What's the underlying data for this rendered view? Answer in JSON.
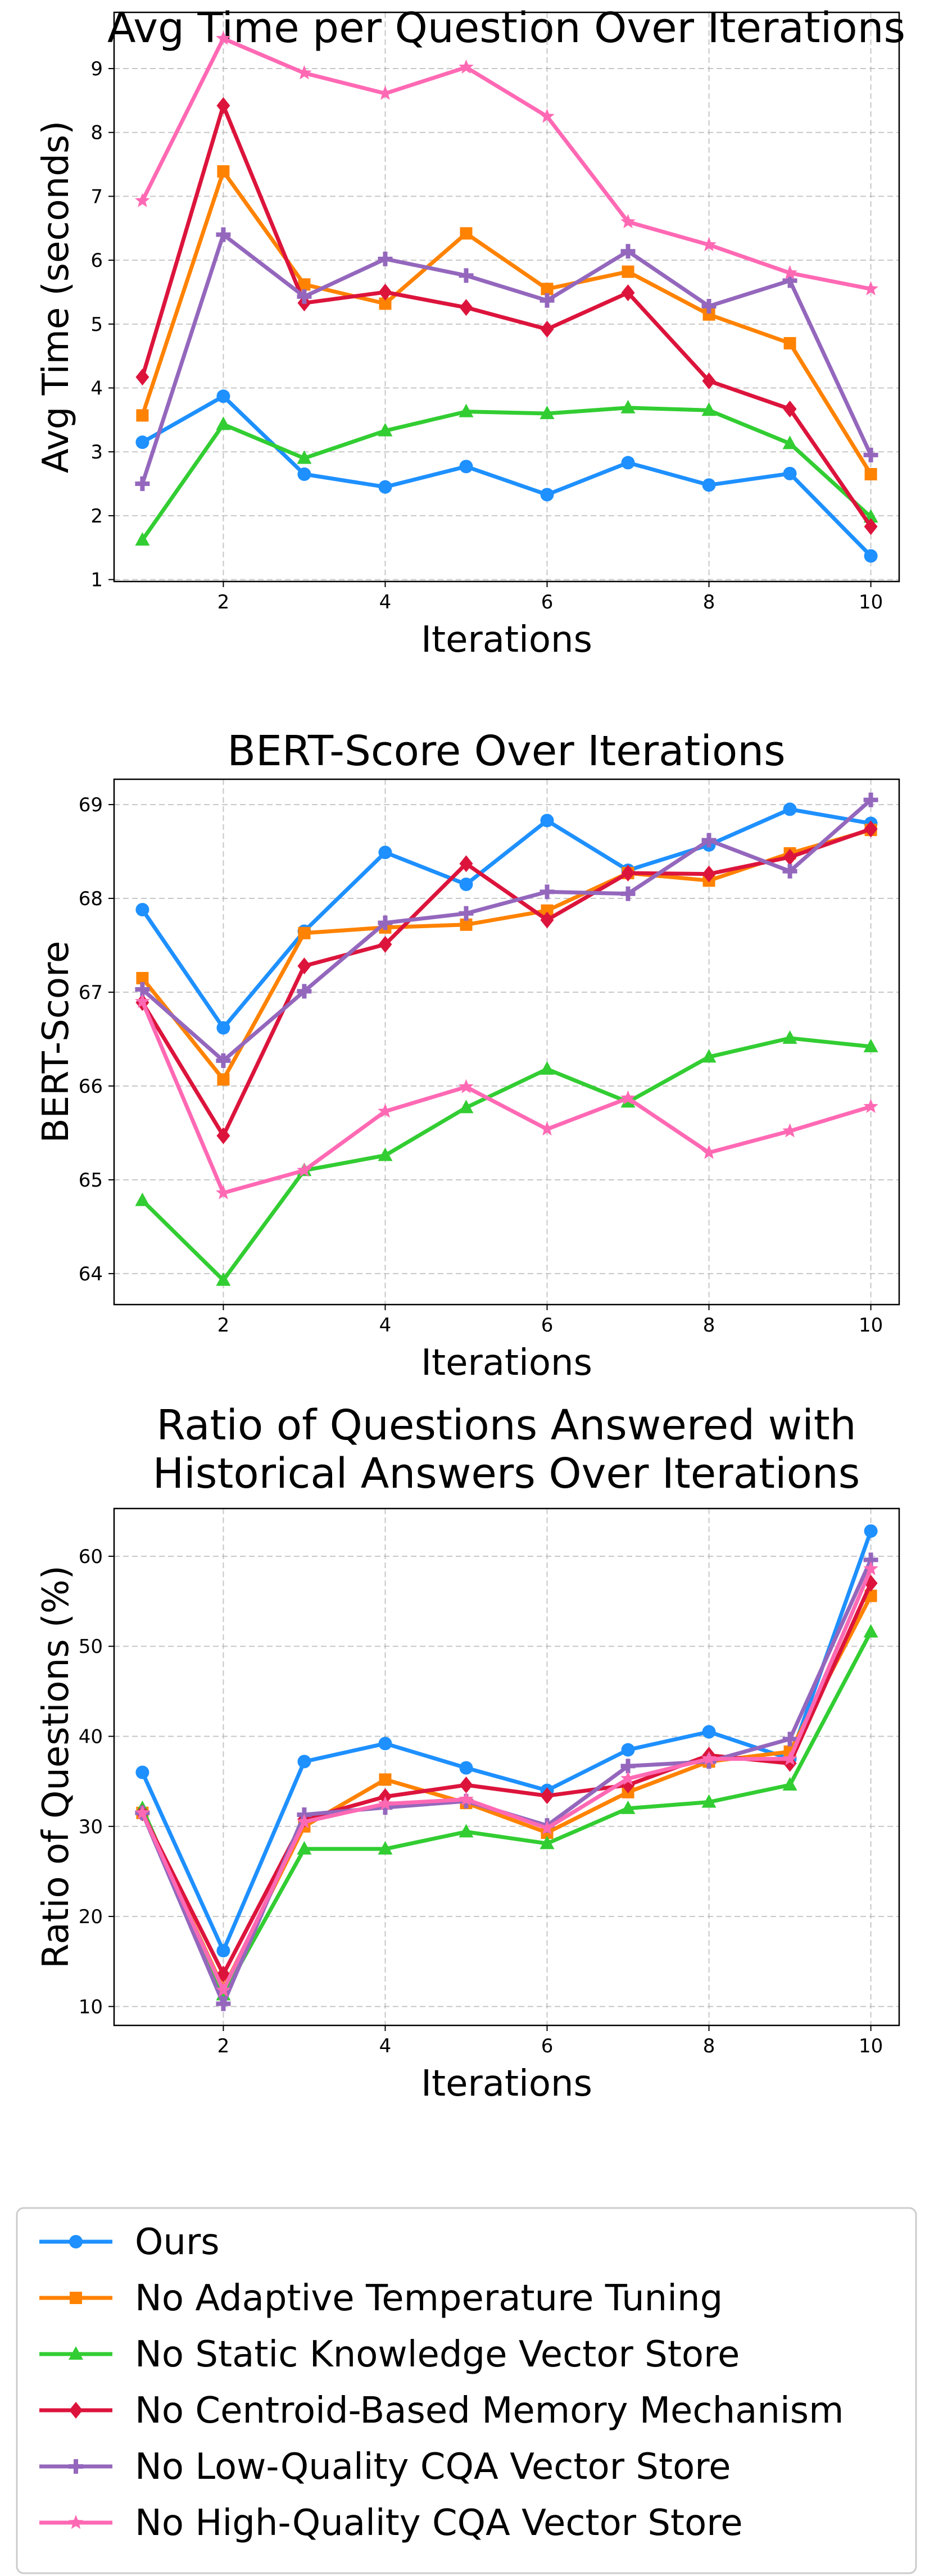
{
  "chart_data": [
    {
      "type": "line",
      "title": [
        "Avg Time per Question Over Iterations"
      ],
      "xlabel": "Iterations",
      "ylabel": "Avg Time (seconds)",
      "xlim": [
        0.65,
        10.35
      ],
      "ylim": [
        0.97,
        9.88
      ],
      "xticks": [
        2,
        4,
        6,
        8,
        10
      ],
      "yticks": [
        1,
        2,
        3,
        4,
        5,
        6,
        7,
        8,
        9
      ],
      "grid": true,
      "x": [
        1,
        2,
        3,
        4,
        5,
        6,
        7,
        8,
        9,
        10
      ],
      "series": [
        {
          "name": "Ours",
          "values": [
            3.15,
            3.87,
            2.65,
            2.45,
            2.77,
            2.33,
            2.83,
            2.48,
            2.66,
            1.37
          ]
        },
        {
          "name": "No Adaptive Temperature Tuning",
          "values": [
            3.57,
            7.39,
            5.62,
            5.32,
            6.42,
            5.55,
            5.82,
            5.15,
            4.7,
            2.65
          ]
        },
        {
          "name": "No Static Knowledge Vector Store",
          "values": [
            1.62,
            3.43,
            2.9,
            3.33,
            3.63,
            3.6,
            3.69,
            3.65,
            3.13,
            1.98
          ]
        },
        {
          "name": "No Centroid-Based Memory Mechanism",
          "values": [
            4.17,
            8.42,
            5.33,
            5.5,
            5.26,
            4.92,
            5.49,
            4.11,
            3.67,
            1.83
          ]
        },
        {
          "name": "No Low-Quality CQA Vector Store",
          "values": [
            2.5,
            6.4,
            5.43,
            6.02,
            5.76,
            5.37,
            6.14,
            5.28,
            5.68,
            2.95
          ]
        },
        {
          "name": "No High-Quality CQA Vector Store",
          "values": [
            6.93,
            9.47,
            8.93,
            8.61,
            9.02,
            8.25,
            6.6,
            6.24,
            5.8,
            5.55
          ]
        }
      ]
    },
    {
      "type": "line",
      "title": [
        "BERT-Score Over Iterations"
      ],
      "xlabel": "Iterations",
      "ylabel": "BERT-Score",
      "xlim": [
        0.65,
        10.35
      ],
      "ylim": [
        63.67,
        69.27
      ],
      "xticks": [
        2,
        4,
        6,
        8,
        10
      ],
      "yticks": [
        64,
        65,
        66,
        67,
        68,
        69
      ],
      "grid": true,
      "x": [
        1,
        2,
        3,
        4,
        5,
        6,
        7,
        8,
        9,
        10
      ],
      "series": [
        {
          "name": "Ours",
          "values": [
            67.88,
            66.62,
            67.65,
            68.49,
            68.15,
            68.83,
            68.3,
            68.57,
            68.95,
            68.8
          ]
        },
        {
          "name": "No Adaptive Temperature Tuning",
          "values": [
            67.15,
            66.07,
            67.63,
            67.69,
            67.72,
            67.87,
            68.27,
            68.19,
            68.48,
            68.73
          ]
        },
        {
          "name": "No Static Knowledge Vector Store",
          "values": [
            64.78,
            63.93,
            65.1,
            65.26,
            65.77,
            66.18,
            65.83,
            66.31,
            66.51,
            66.42
          ]
        },
        {
          "name": "No Centroid-Based Memory Mechanism",
          "values": [
            66.89,
            65.47,
            67.28,
            67.51,
            68.37,
            67.77,
            68.27,
            68.26,
            68.44,
            68.74
          ]
        },
        {
          "name": "No Low-Quality CQA Vector Store",
          "values": [
            67.03,
            66.27,
            67.01,
            67.74,
            67.84,
            68.07,
            68.05,
            68.62,
            68.29,
            69.05
          ]
        },
        {
          "name": "No High-Quality CQA Vector Store",
          "values": [
            66.9,
            64.86,
            65.1,
            65.73,
            65.99,
            65.54,
            65.87,
            65.29,
            65.52,
            65.78
          ]
        }
      ]
    },
    {
      "type": "line",
      "title": [
        "Ratio of Questions Answered with",
        "Historical Answers Over Iterations"
      ],
      "xlabel": "Iterations",
      "ylabel": "Ratio of Questions (%)",
      "xlim": [
        0.65,
        10.35
      ],
      "ylim": [
        7.9,
        65.3
      ],
      "xticks": [
        2,
        4,
        6,
        8,
        10
      ],
      "yticks": [
        10,
        20,
        30,
        40,
        50,
        60
      ],
      "grid": true,
      "x": [
        1,
        2,
        3,
        4,
        5,
        6,
        7,
        8,
        9,
        10
      ],
      "series": [
        {
          "name": "Ours",
          "values": [
            36.0,
            16.2,
            37.2,
            39.2,
            36.5,
            34.0,
            38.5,
            40.5,
            37.5,
            62.8
          ]
        },
        {
          "name": "No Adaptive Temperature Tuning",
          "values": [
            31.5,
            12.0,
            30.0,
            35.2,
            32.6,
            29.3,
            33.8,
            37.2,
            38.3,
            55.6
          ]
        },
        {
          "name": "No Static Knowledge Vector Store",
          "values": [
            32.0,
            11.3,
            27.5,
            27.5,
            29.4,
            28.1,
            32.0,
            32.7,
            34.6,
            51.6
          ]
        },
        {
          "name": "No Centroid-Based Memory Mechanism",
          "values": [
            31.5,
            13.6,
            30.8,
            33.3,
            34.6,
            33.4,
            34.6,
            37.9,
            37.0,
            57.0
          ]
        },
        {
          "name": "No Low-Quality CQA Vector Store",
          "values": [
            31.5,
            10.3,
            31.3,
            32.1,
            32.8,
            30.1,
            36.7,
            37.2,
            39.7,
            59.6
          ]
        },
        {
          "name": "No High-Quality CQA Vector Store",
          "values": [
            31.5,
            11.8,
            30.5,
            32.5,
            33.0,
            29.8,
            35.3,
            37.5,
            37.5,
            58.6
          ]
        }
      ]
    }
  ],
  "legend": {
    "placement": "bottom",
    "entries": [
      {
        "name": "Ours",
        "color": "#1e90ff",
        "marker": "circle"
      },
      {
        "name": "No Adaptive Temperature Tuning",
        "color": "#ff8200",
        "marker": "square"
      },
      {
        "name": "No Static Knowledge Vector Store",
        "color": "#32cd32",
        "marker": "triangle"
      },
      {
        "name": "No Centroid-Based Memory Mechanism",
        "color": "#dc143c",
        "marker": "diamond"
      },
      {
        "name": "No Low-Quality CQA Vector Store",
        "color": "#9467bd",
        "marker": "plus"
      },
      {
        "name": "No High-Quality CQA Vector Store",
        "color": "#ff69b4",
        "marker": "star"
      }
    ]
  }
}
